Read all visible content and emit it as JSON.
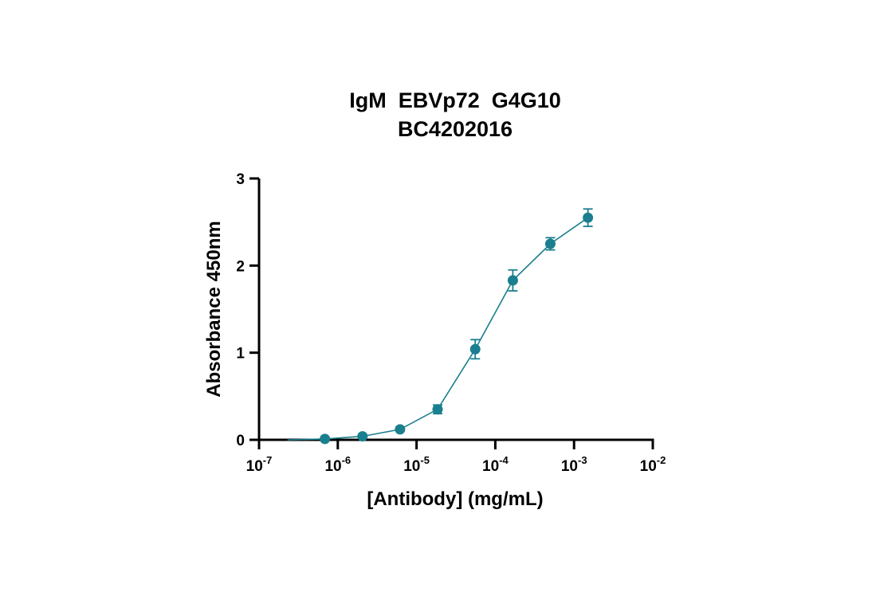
{
  "chart_data": {
    "type": "line",
    "title_lines": [
      "IgM  EBVp72  G4G10",
      "BC4202016"
    ],
    "xlabel": "[Antibody] (mg/mL)",
    "ylabel": "Absorbance 450nm",
    "x_scale": "log10",
    "xlim": [
      1e-07,
      0.01
    ],
    "ylim": [
      0,
      3
    ],
    "x_ticks": [
      {
        "value": 1e-07,
        "base": "10",
        "exp": "-7"
      },
      {
        "value": 1e-06,
        "base": "10",
        "exp": "-6"
      },
      {
        "value": 1e-05,
        "base": "10",
        "exp": "-5"
      },
      {
        "value": 0.0001,
        "base": "10",
        "exp": "-4"
      },
      {
        "value": 0.001,
        "base": "10",
        "exp": "-3"
      },
      {
        "value": 0.01,
        "base": "10",
        "exp": "-2"
      }
    ],
    "y_ticks": [
      {
        "value": 0,
        "label": "0"
      },
      {
        "value": 1,
        "label": "1"
      },
      {
        "value": 2,
        "label": "2"
      },
      {
        "value": 3,
        "label": "3"
      }
    ],
    "grid": false,
    "legend": "none",
    "color": "#1a7f8e",
    "series": [
      {
        "points": [
          {
            "x": 6.86e-07,
            "y": 0.01,
            "err": 0.0
          },
          {
            "x": 2.06e-06,
            "y": 0.04,
            "err": 0.01
          },
          {
            "x": 6.17e-06,
            "y": 0.12,
            "err": 0.01
          },
          {
            "x": 1.85e-05,
            "y": 0.35,
            "err": 0.05
          },
          {
            "x": 5.56e-05,
            "y": 1.04,
            "err": 0.11
          },
          {
            "x": 0.000167,
            "y": 1.83,
            "err": 0.12
          },
          {
            "x": 0.0005,
            "y": 2.25,
            "err": 0.07
          },
          {
            "x": 0.0015,
            "y": 2.55,
            "err": 0.1
          }
        ],
        "fit_line_start": {
          "x": 2.3e-07,
          "y": 0.0
        }
      }
    ]
  }
}
